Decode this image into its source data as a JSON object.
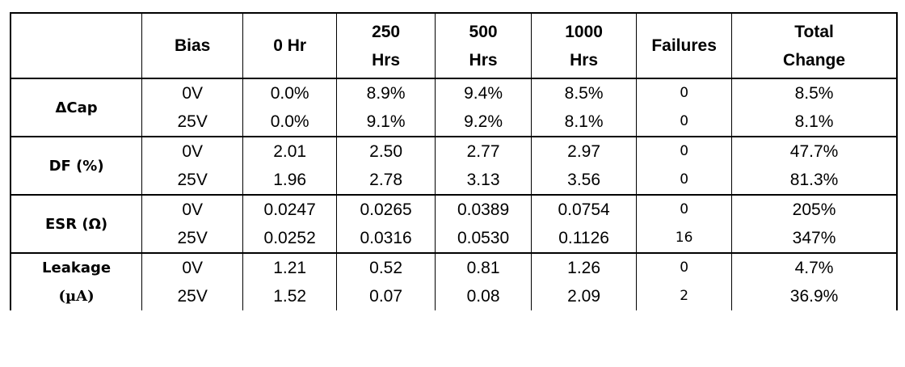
{
  "header": {
    "empty": "",
    "bias": "Bias",
    "h0": "0 Hr",
    "h250a": "250",
    "h250b": "Hrs",
    "h500a": "500",
    "h500b": "Hrs",
    "h1000a": "1000",
    "h1000b": "Hrs",
    "failures": "Failures",
    "totala": "Total",
    "totalb": "Change"
  },
  "groups": [
    {
      "label_line1": "ΔCap",
      "label_line2": "",
      "rows": [
        {
          "bias": "0V",
          "h0": "0.0%",
          "h250": "8.9%",
          "h500": "9.4%",
          "h1000": "8.5%",
          "failures": "0",
          "total": "8.5%"
        },
        {
          "bias": "25V",
          "h0": "0.0%",
          "h250": "9.1%",
          "h500": "9.2%",
          "h1000": "8.1%",
          "failures": "0",
          "total": "8.1%"
        }
      ]
    },
    {
      "label_line1": "DF (%)",
      "label_line2": "",
      "rows": [
        {
          "bias": "0V",
          "h0": "2.01",
          "h250": "2.50",
          "h500": "2.77",
          "h1000": "2.97",
          "failures": "0",
          "total": "47.7%"
        },
        {
          "bias": "25V",
          "h0": "1.96",
          "h250": "2.78",
          "h500": "3.13",
          "h1000": "3.56",
          "failures": "0",
          "total": "81.3%"
        }
      ]
    },
    {
      "label_line1": "ESR (Ω)",
      "label_line2": "",
      "rows": [
        {
          "bias": "0V",
          "h0": "0.0247",
          "h250": "0.0265",
          "h500": "0.0389",
          "h1000": "0.0754",
          "failures": "0",
          "total": "205%"
        },
        {
          "bias": "25V",
          "h0": "0.0252",
          "h250": "0.0316",
          "h500": "0.0530",
          "h1000": "0.1126",
          "failures": "16",
          "total": "347%"
        }
      ]
    },
    {
      "label_line1": "Leakage",
      "label_line2": "(µA)",
      "rows": [
        {
          "bias": "0V",
          "h0": "1.21",
          "h250": "0.52",
          "h500": "0.81",
          "h1000": "1.26",
          "failures": "0",
          "total": "4.7%"
        },
        {
          "bias": "25V",
          "h0": "1.52",
          "h250": "0.07",
          "h500": "0.08",
          "h1000": "2.09",
          "failures": "2",
          "total": "36.9%"
        }
      ]
    }
  ]
}
